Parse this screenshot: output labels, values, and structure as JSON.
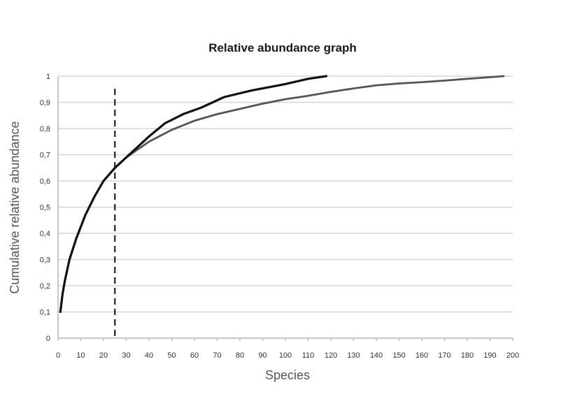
{
  "chart_data": {
    "type": "line",
    "title": "Relative abundance graph",
    "xlabel": "Species",
    "ylabel": "Cumulative relative abundance",
    "xlim": [
      0,
      200
    ],
    "ylim": [
      0,
      1
    ],
    "x_ticks": [
      "0",
      "10",
      "20",
      "30",
      "40",
      "50",
      "60",
      "70",
      "80",
      "90",
      "100",
      "110",
      "120",
      "130",
      "140",
      "150",
      "160",
      "170",
      "180",
      "190",
      "200"
    ],
    "y_ticks": [
      "0",
      "0,1",
      "0,2",
      "0,3",
      "0,4",
      "0,5",
      "0,6",
      "0,7",
      "0,8",
      "0,9",
      "1"
    ],
    "grid": true,
    "legend": "none",
    "reference_line": {
      "x": 25,
      "style": "dashed",
      "color": "#222222"
    },
    "series": [
      {
        "color": "#111111",
        "x": [
          1,
          2,
          3,
          5,
          8,
          12,
          16,
          20,
          25,
          30,
          35,
          40,
          47,
          55,
          63,
          73,
          85,
          100,
          110,
          118
        ],
        "y": [
          0.1,
          0.17,
          0.22,
          0.3,
          0.38,
          0.47,
          0.54,
          0.6,
          0.65,
          0.69,
          0.73,
          0.77,
          0.82,
          0.855,
          0.88,
          0.92,
          0.945,
          0.97,
          0.99,
          1.0
        ]
      },
      {
        "color": "#555555",
        "x": [
          1,
          2,
          3,
          5,
          8,
          12,
          16,
          20,
          25,
          30,
          35,
          40,
          50,
          60,
          70,
          80,
          90,
          100,
          110,
          120,
          130,
          140,
          150,
          160,
          170,
          180,
          190,
          196
        ],
        "y": [
          0.1,
          0.17,
          0.22,
          0.3,
          0.38,
          0.47,
          0.54,
          0.6,
          0.65,
          0.69,
          0.72,
          0.75,
          0.795,
          0.83,
          0.855,
          0.875,
          0.895,
          0.912,
          0.925,
          0.94,
          0.953,
          0.965,
          0.972,
          0.977,
          0.983,
          0.99,
          0.996,
          1.0
        ]
      }
    ]
  }
}
